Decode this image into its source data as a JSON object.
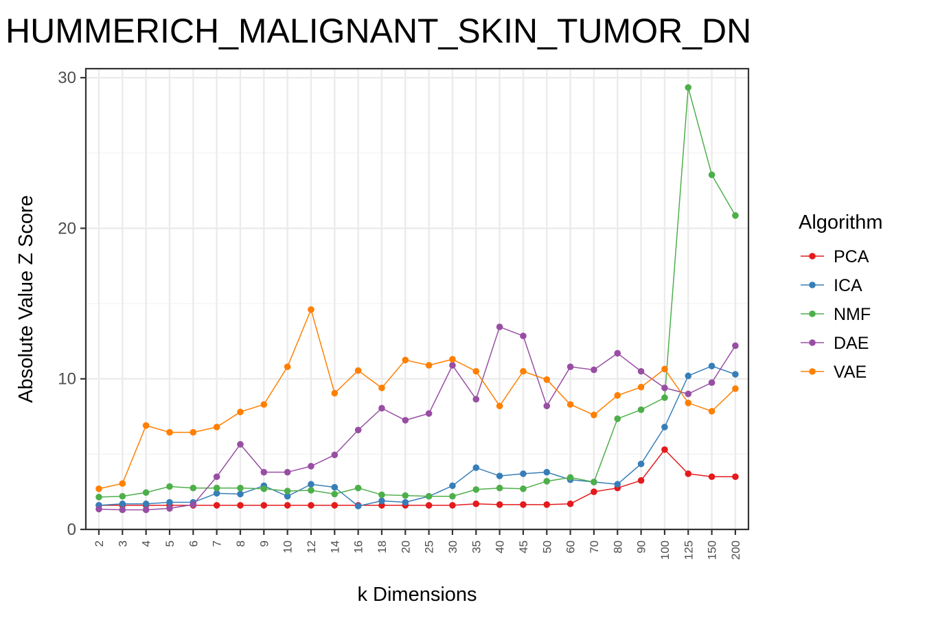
{
  "chart_data": {
    "type": "line",
    "title": "HUMMERICH_MALIGNANT_SKIN_TUMOR_DN",
    "xlabel": "k Dimensions",
    "ylabel": "Absolute Value Z Score",
    "categories": [
      "2",
      "3",
      "4",
      "5",
      "6",
      "7",
      "8",
      "9",
      "10",
      "12",
      "14",
      "16",
      "18",
      "20",
      "25",
      "30",
      "35",
      "40",
      "45",
      "50",
      "60",
      "70",
      "80",
      "90",
      "100",
      "125",
      "150",
      "200"
    ],
    "yticks": [
      "0",
      "10",
      "20",
      "30"
    ],
    "ylim": [
      0,
      30.6
    ],
    "grid": true,
    "legend": {
      "title": "Algorithm",
      "position": "right"
    },
    "series": [
      {
        "name": "PCA",
        "color": "#e41a1c",
        "values": [
          1.6,
          1.6,
          1.6,
          1.6,
          1.6,
          1.6,
          1.6,
          1.6,
          1.6,
          1.6,
          1.6,
          1.6,
          1.6,
          1.6,
          1.6,
          1.6,
          1.7,
          1.65,
          1.65,
          1.65,
          1.7,
          2.5,
          2.75,
          3.25,
          5.3,
          3.7,
          3.5,
          3.5
        ]
      },
      {
        "name": "ICA",
        "color": "#377eb8",
        "values": [
          1.6,
          1.7,
          1.7,
          1.8,
          1.8,
          2.4,
          2.35,
          2.9,
          2.2,
          3.0,
          2.8,
          1.55,
          1.9,
          1.8,
          2.2,
          2.9,
          4.1,
          3.55,
          3.7,
          3.8,
          3.3,
          3.15,
          3.0,
          4.35,
          6.8,
          10.2,
          10.85,
          10.3
        ]
      },
      {
        "name": "NMF",
        "color": "#4daf4a",
        "values": [
          2.15,
          2.2,
          2.45,
          2.85,
          2.75,
          2.75,
          2.75,
          2.7,
          2.55,
          2.6,
          2.35,
          2.75,
          2.3,
          2.25,
          2.2,
          2.2,
          2.65,
          2.75,
          2.7,
          3.2,
          3.45,
          3.15,
          7.35,
          7.95,
          8.75,
          29.35,
          23.55,
          20.85
        ]
      },
      {
        "name": "DAE",
        "color": "#984ea3",
        "values": [
          1.35,
          1.3,
          1.3,
          1.4,
          1.65,
          3.5,
          5.65,
          3.8,
          3.8,
          4.2,
          4.95,
          6.6,
          8.05,
          7.25,
          7.7,
          10.9,
          8.65,
          13.45,
          12.85,
          8.2,
          10.8,
          10.6,
          11.7,
          10.5,
          9.4,
          9.0,
          9.75,
          12.2
        ]
      },
      {
        "name": "VAE",
        "color": "#ff7f00",
        "values": [
          2.7,
          3.05,
          6.9,
          6.45,
          6.45,
          6.8,
          7.8,
          8.3,
          10.8,
          14.6,
          9.05,
          10.55,
          9.4,
          11.25,
          10.9,
          11.3,
          10.5,
          8.2,
          10.5,
          9.95,
          8.3,
          7.6,
          8.9,
          9.45,
          10.65,
          8.4,
          7.85,
          9.35
        ]
      }
    ]
  }
}
